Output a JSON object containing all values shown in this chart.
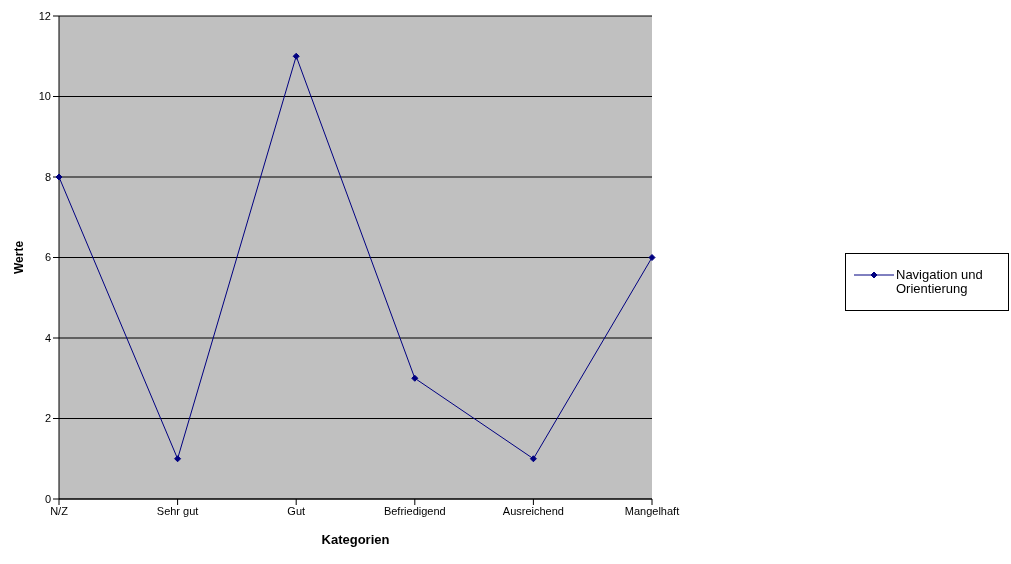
{
  "chart_data": {
    "type": "line",
    "xlabel": "Kategorien",
    "ylabel": "Werte",
    "categories": [
      "N/Z",
      "Sehr gut",
      "Gut",
      "Befriedigend",
      "Ausreichend",
      "Mangelhaft"
    ],
    "series": [
      {
        "name": "Navigation und Orientierung",
        "color": "#000080",
        "values": [
          8,
          1,
          11,
          3,
          1,
          6
        ]
      }
    ],
    "ylim": [
      0,
      12
    ],
    "yticks": [
      0,
      2,
      4,
      6,
      8,
      10,
      12
    ],
    "grid": "y",
    "legend": "right",
    "marker": "diamond",
    "line_style": "solid"
  }
}
